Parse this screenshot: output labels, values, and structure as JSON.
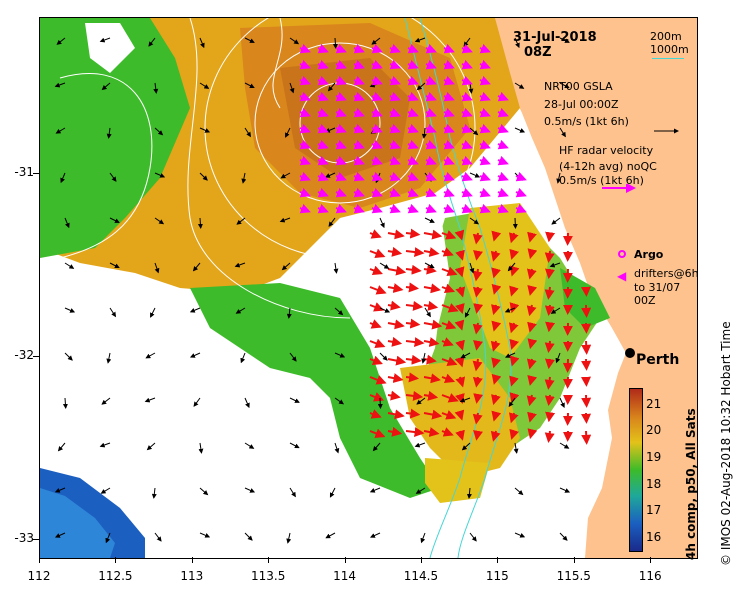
{
  "title": {
    "date": "31-Jul-2018",
    "time": "08Z"
  },
  "isobath_legend": {
    "line1": "200m",
    "line2": "1000m",
    "color": "#45d6d6"
  },
  "gsla_legend": {
    "line1": "NRT00 GSLA",
    "line2": "28-Jul 00:00Z",
    "line3": "0.5m/s (1kt 6h)"
  },
  "radar_legend": {
    "line1": "HF radar velocity",
    "line2": "(4-12h avg) noQC",
    "line3": "0.5m/s (1kt 6h)"
  },
  "argo_legend": {
    "label": "Argo",
    "color": "#ff00ff"
  },
  "drifter_legend": {
    "line1": "drifters@6h",
    "line2": "to 31/07 00Z"
  },
  "city": {
    "name": "Perth"
  },
  "colorbar": {
    "label": "4h comp, p50, All Sats",
    "ticks": [
      "21",
      "20",
      "19",
      "18",
      "17",
      "16"
    ],
    "min": 15.5,
    "max": 21.6
  },
  "credit": "© IMOS 02-Aug-2018 10:32 Hobart Time",
  "axes": {
    "x_ticks": [
      "112",
      "112.5",
      "113",
      "113.5",
      "114",
      "114.5",
      "115",
      "115.5",
      "116"
    ],
    "y_ticks": [
      "-31",
      "-32",
      "-33"
    ],
    "lon_range": [
      112,
      116.3
    ],
    "lat_range": [
      -30.15,
      -33.1
    ]
  },
  "colors": {
    "land": "#fdc28e",
    "warm": "#d9861c",
    "mid": "#e3a51a",
    "green": "#3dbb2a",
    "cool": "#1b5fc0",
    "radar_arrow": "#ee1111",
    "gsla_arrow": "#000000",
    "contour": "#ffffff"
  }
}
